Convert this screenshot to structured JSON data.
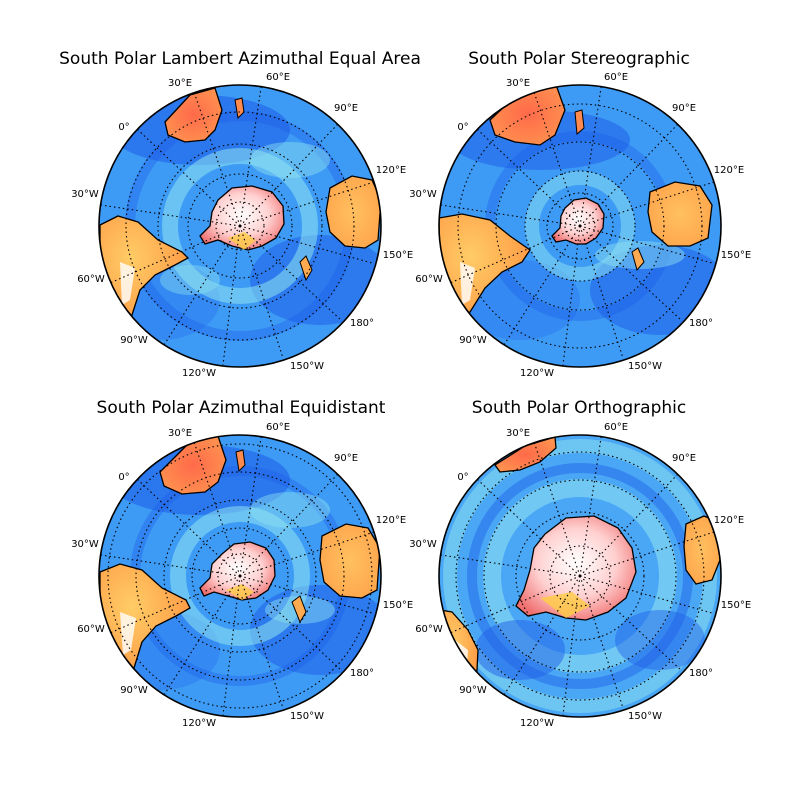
{
  "figure": {
    "maps": [
      {
        "title": "South Polar Lambert Azimuthal Equal Area",
        "projection": "laea",
        "lon_labels": [
          "60°E",
          "90°E",
          "120°E",
          "150°E",
          "180°",
          "150°W",
          "120°W",
          "90°W",
          "60°W",
          "30°W",
          "0°",
          "30°E"
        ]
      },
      {
        "title": "South Polar Stereographic",
        "projection": "stere",
        "lon_labels": [
          "60°E",
          "90°E",
          "120°E",
          "150°E",
          "180°",
          "150°W",
          "120°W",
          "90°W",
          "60°W",
          "30°W",
          "0°",
          "30°E"
        ]
      },
      {
        "title": "South Polar Azimuthal Equidistant",
        "projection": "aeqd",
        "lon_labels": [
          "60°E",
          "90°E",
          "120°E",
          "150°E",
          "180°",
          "150°W",
          "120°W",
          "90°W",
          "60°W",
          "30°W",
          "0°",
          "30°E"
        ]
      },
      {
        "title": "South Polar Orthographic",
        "projection": "ortho",
        "lon_labels": [
          "60°E",
          "90°E",
          "120°E",
          "150°E",
          "180°",
          "150°W",
          "120°W",
          "90°W",
          "60°W",
          "30°W",
          "0°",
          "30°E"
        ]
      }
    ],
    "meridian_step_deg": 30,
    "graticule_style": "dotted",
    "colormap": "jet",
    "colors": {
      "ocean_deep": "#1f5fe8",
      "ocean": "#3d9bf5",
      "ocean_shallow": "#8fe3f0",
      "land_low": "#ffbb55",
      "land_high": "#f05a4e",
      "ice": "#ffe6e6",
      "coast": "#000000"
    }
  }
}
